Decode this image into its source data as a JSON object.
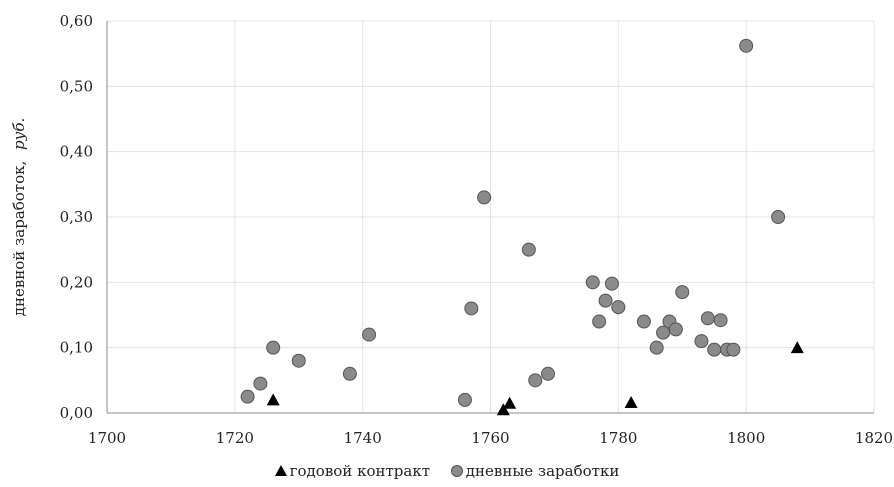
{
  "chart_data": {
    "type": "scatter",
    "title": "",
    "xlabel": "",
    "ylabel": "дневной заработок, руб.",
    "ylabel_main": "дневной заработок,",
    "ylabel_unit": "руб.",
    "xlim": [
      1700,
      1820
    ],
    "ylim": [
      0,
      0.6
    ],
    "x_ticks": [
      "1700",
      "1720",
      "1740",
      "1760",
      "1780",
      "1800",
      "1820"
    ],
    "y_ticks": [
      "0,00",
      "0,10",
      "0,20",
      "0,30",
      "0,40",
      "0,50",
      "0,60"
    ],
    "grid": true,
    "legend_position": "bottom",
    "series": [
      {
        "name": "годовой контракт",
        "marker": "triangle",
        "color": "#000000",
        "points": [
          [
            1726,
            0.02
          ],
          [
            1762,
            0.005
          ],
          [
            1763,
            0.015
          ],
          [
            1782,
            0.016
          ],
          [
            1808,
            0.1
          ]
        ]
      },
      {
        "name": "дневные заработки",
        "marker": "circle",
        "color": "#8a8a8a",
        "points": [
          [
            1722,
            0.025
          ],
          [
            1724,
            0.045
          ],
          [
            1726,
            0.1
          ],
          [
            1730,
            0.08
          ],
          [
            1738,
            0.06
          ],
          [
            1741,
            0.12
          ],
          [
            1756,
            0.02
          ],
          [
            1757,
            0.16
          ],
          [
            1759,
            0.33
          ],
          [
            1766,
            0.25
          ],
          [
            1767,
            0.05
          ],
          [
            1769,
            0.06
          ],
          [
            1776,
            0.2
          ],
          [
            1777,
            0.14
          ],
          [
            1778,
            0.172
          ],
          [
            1779,
            0.198
          ],
          [
            1780,
            0.162
          ],
          [
            1784,
            0.14
          ],
          [
            1786,
            0.1
          ],
          [
            1787,
            0.123
          ],
          [
            1788,
            0.14
          ],
          [
            1789,
            0.128
          ],
          [
            1790,
            0.185
          ],
          [
            1793,
            0.11
          ],
          [
            1794,
            0.145
          ],
          [
            1795,
            0.097
          ],
          [
            1796,
            0.142
          ],
          [
            1797,
            0.097
          ],
          [
            1798,
            0.097
          ],
          [
            1800,
            0.562
          ],
          [
            1805,
            0.3
          ]
        ]
      }
    ]
  }
}
